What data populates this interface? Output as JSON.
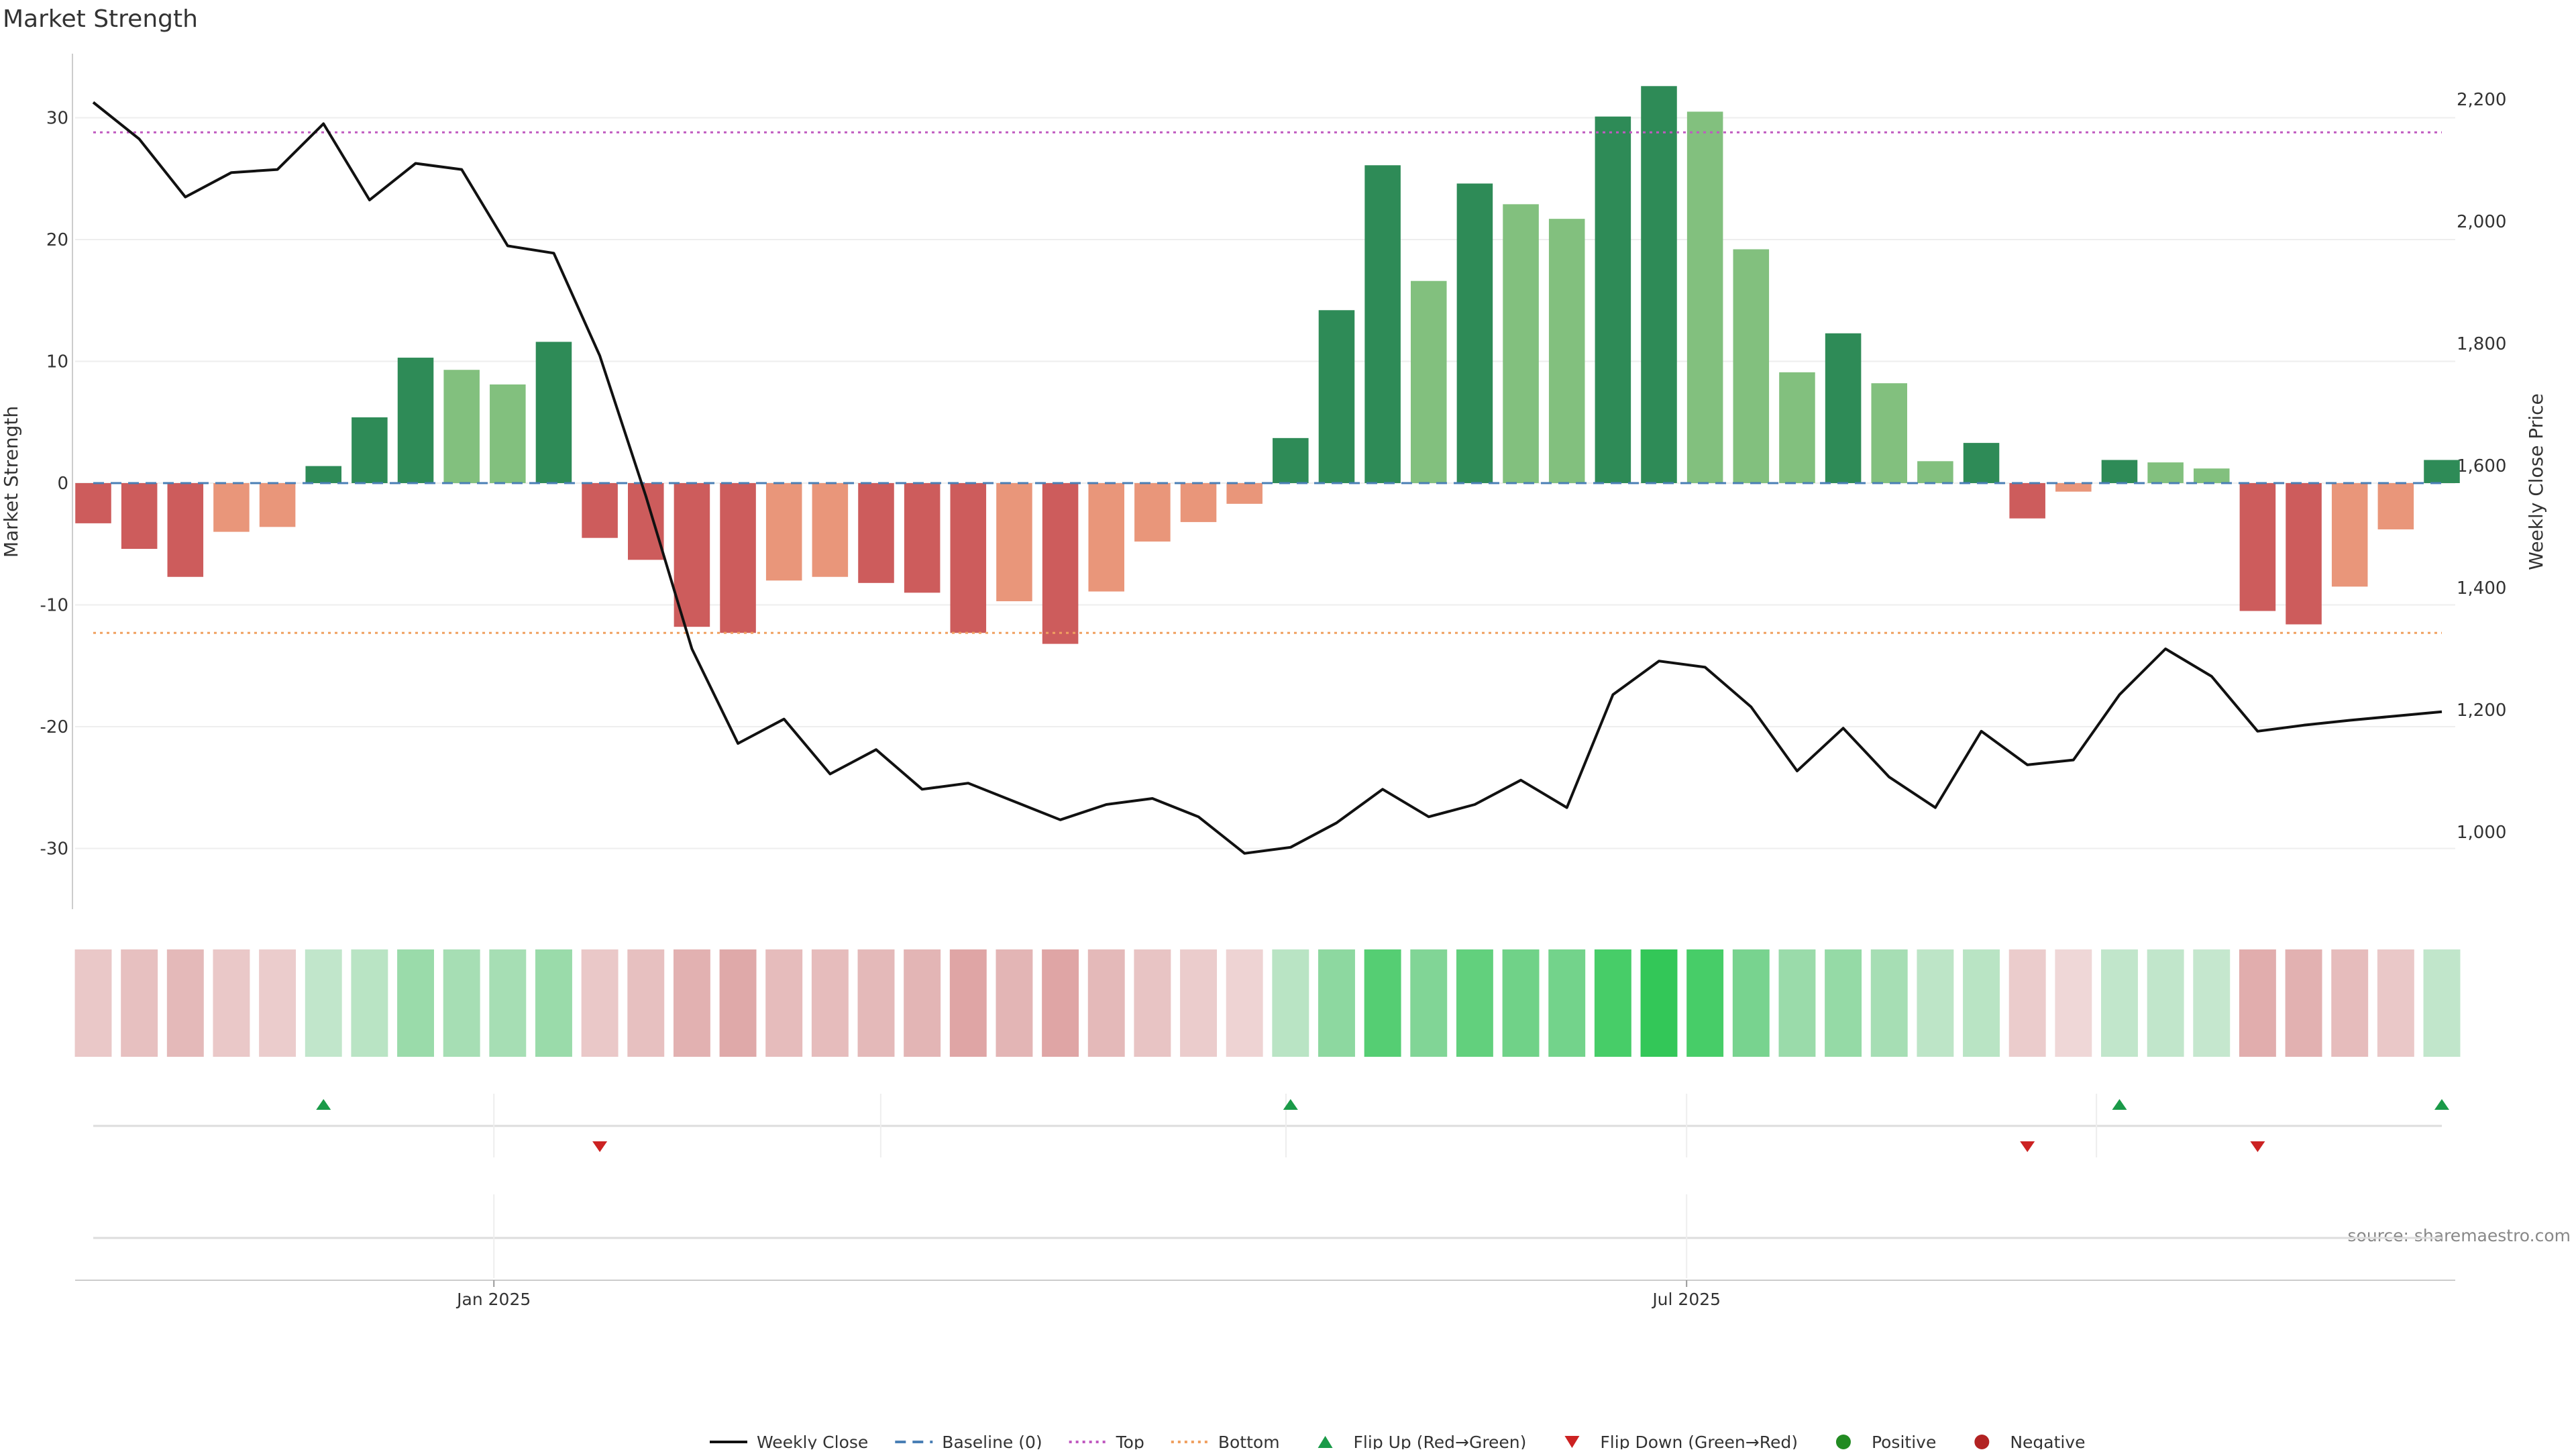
{
  "title": "Market Strength",
  "source": "source: sharemaestro.com",
  "colors": {
    "strong_green": "#2e8b57",
    "light_green": "#82c07e",
    "strong_red": "#cd5c5c",
    "light_red": "#e9967a",
    "baseline": "#4a7fb5",
    "top": "#c05ac0",
    "bottom": "#f0a060",
    "price": "#111111",
    "flip_up": "#1a9a48",
    "flip_down": "#cc2222",
    "positive": "#228b22",
    "negative": "#b22222"
  },
  "chart_data": {
    "type": "bar",
    "title": "Market Strength",
    "ylabel": "Market Strength",
    "y2label": "Weekly Close Price",
    "ylim": [
      -35,
      35
    ],
    "y2lim": [
      905,
      2300
    ],
    "yticks": [
      30,
      20,
      10,
      0,
      -10,
      -20,
      -30
    ],
    "y2ticks": [
      {
        "value": 2200,
        "label": "2,200"
      },
      {
        "value": 2000,
        "label": "2,000"
      },
      {
        "value": 1800,
        "label": "1,800"
      },
      {
        "value": 1600,
        "label": "1,600"
      },
      {
        "value": 1400,
        "label": "1,400"
      },
      {
        "value": 1200,
        "label": "1,200"
      },
      {
        "value": 1000,
        "label": "1,000"
      }
    ],
    "xticks": [
      {
        "index": 8.7,
        "label": "Jan 2025"
      },
      {
        "index": 34.6,
        "label": "Jul 2025"
      }
    ],
    "top_level": 28.8,
    "bottom_level": -12.3,
    "baseline": 0,
    "strength": [
      -3.3,
      -5.4,
      -7.7,
      -4.0,
      -3.6,
      1.4,
      5.4,
      10.3,
      9.3,
      8.1,
      11.6,
      -4.5,
      -6.3,
      -11.8,
      -12.3,
      -8.0,
      -7.7,
      -8.2,
      -9.0,
      -12.3,
      -9.7,
      -13.2,
      -8.9,
      -4.8,
      -3.2,
      -1.7,
      3.7,
      14.2,
      26.1,
      16.6,
      24.6,
      22.9,
      21.7,
      30.1,
      32.6,
      30.5,
      19.2,
      9.1,
      12.3,
      8.2,
      1.8,
      3.3,
      -2.9,
      -0.7,
      1.9,
      1.7,
      1.2,
      -10.5,
      -11.6,
      -8.5,
      -3.8,
      1.9
    ],
    "strength_class": [
      "S",
      "S",
      "S",
      "W",
      "W",
      "S",
      "S",
      "S",
      "W",
      "W",
      "S",
      "S",
      "S",
      "S",
      "S",
      "W",
      "W",
      "S",
      "S",
      "S",
      "W",
      "S",
      "W",
      "W",
      "W",
      "W",
      "S",
      "S",
      "S",
      "W",
      "S",
      "W",
      "W",
      "S",
      "S",
      "W",
      "W",
      "W",
      "S",
      "W",
      "W",
      "S",
      "S",
      "W",
      "S",
      "W",
      "W",
      "S",
      "S",
      "W",
      "W",
      "S"
    ],
    "price": [
      2195,
      2135,
      2040,
      2080,
      2085,
      2160,
      2035,
      2095,
      2085,
      1960,
      1948,
      1780,
      1550,
      1300,
      1145,
      1185,
      1095,
      1135,
      1070,
      1080,
      1050,
      1020,
      1045,
      1055,
      1025,
      965,
      975,
      1015,
      1070,
      1025,
      1045,
      1085,
      1040,
      1225,
      1280,
      1270,
      1205,
      1100,
      1170,
      1090,
      1040,
      1165,
      1110,
      1118,
      1225,
      1300,
      1255,
      1165,
      1175,
      1183,
      1190,
      1197
    ],
    "strip": [
      -0.18,
      -0.23,
      -0.28,
      -0.18,
      -0.15,
      0.2,
      0.25,
      0.42,
      0.35,
      0.35,
      0.42,
      -0.18,
      -0.23,
      -0.33,
      -0.37,
      -0.26,
      -0.26,
      -0.28,
      -0.3,
      -0.4,
      -0.3,
      -0.4,
      -0.28,
      -0.2,
      -0.15,
      -0.1,
      0.25,
      0.5,
      0.78,
      0.56,
      0.72,
      0.64,
      0.62,
      0.85,
      0.95,
      0.85,
      0.6,
      0.42,
      0.45,
      0.35,
      0.22,
      0.25,
      -0.15,
      -0.08,
      0.2,
      0.2,
      0.18,
      -0.35,
      -0.33,
      -0.25,
      -0.17,
      0.2
    ],
    "flips_up": [
      5,
      26,
      44,
      51
    ],
    "flips_down": [
      11,
      42,
      47
    ],
    "event_dividers": [
      8.7,
      17.1,
      25.9,
      34.6,
      43.5
    ]
  },
  "legend": [
    {
      "label": "Weekly Close",
      "kind": "line",
      "color": "#111111"
    },
    {
      "label": "Baseline (0)",
      "kind": "dash",
      "color": "#4a7fb5"
    },
    {
      "label": "Top",
      "kind": "dot",
      "color": "#c05ac0"
    },
    {
      "label": "Bottom",
      "kind": "dot",
      "color": "#f0a060"
    },
    {
      "label": "Flip Up (Red→Green)",
      "kind": "tri-up",
      "color": "#1a9a48"
    },
    {
      "label": "Flip Down (Green→Red)",
      "kind": "tri-down",
      "color": "#cc2222"
    },
    {
      "label": "Positive",
      "kind": "circle",
      "color": "#228b22"
    },
    {
      "label": "Negative",
      "kind": "circle",
      "color": "#b22222"
    }
  ]
}
